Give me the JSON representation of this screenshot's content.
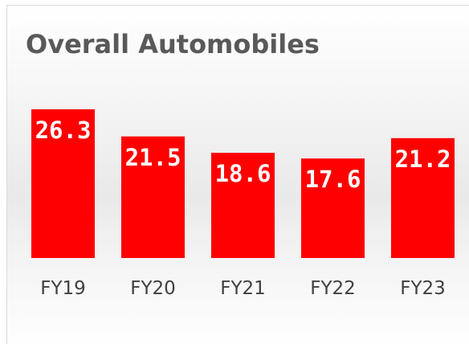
{
  "chart_data": {
    "type": "bar",
    "title": "Overall Automobiles",
    "categories": [
      "FY19",
      "FY20",
      "FY21",
      "FY22",
      "FY23"
    ],
    "values": [
      26.3,
      21.5,
      18.6,
      17.6,
      21.2
    ],
    "color": "#ff0000"
  }
}
